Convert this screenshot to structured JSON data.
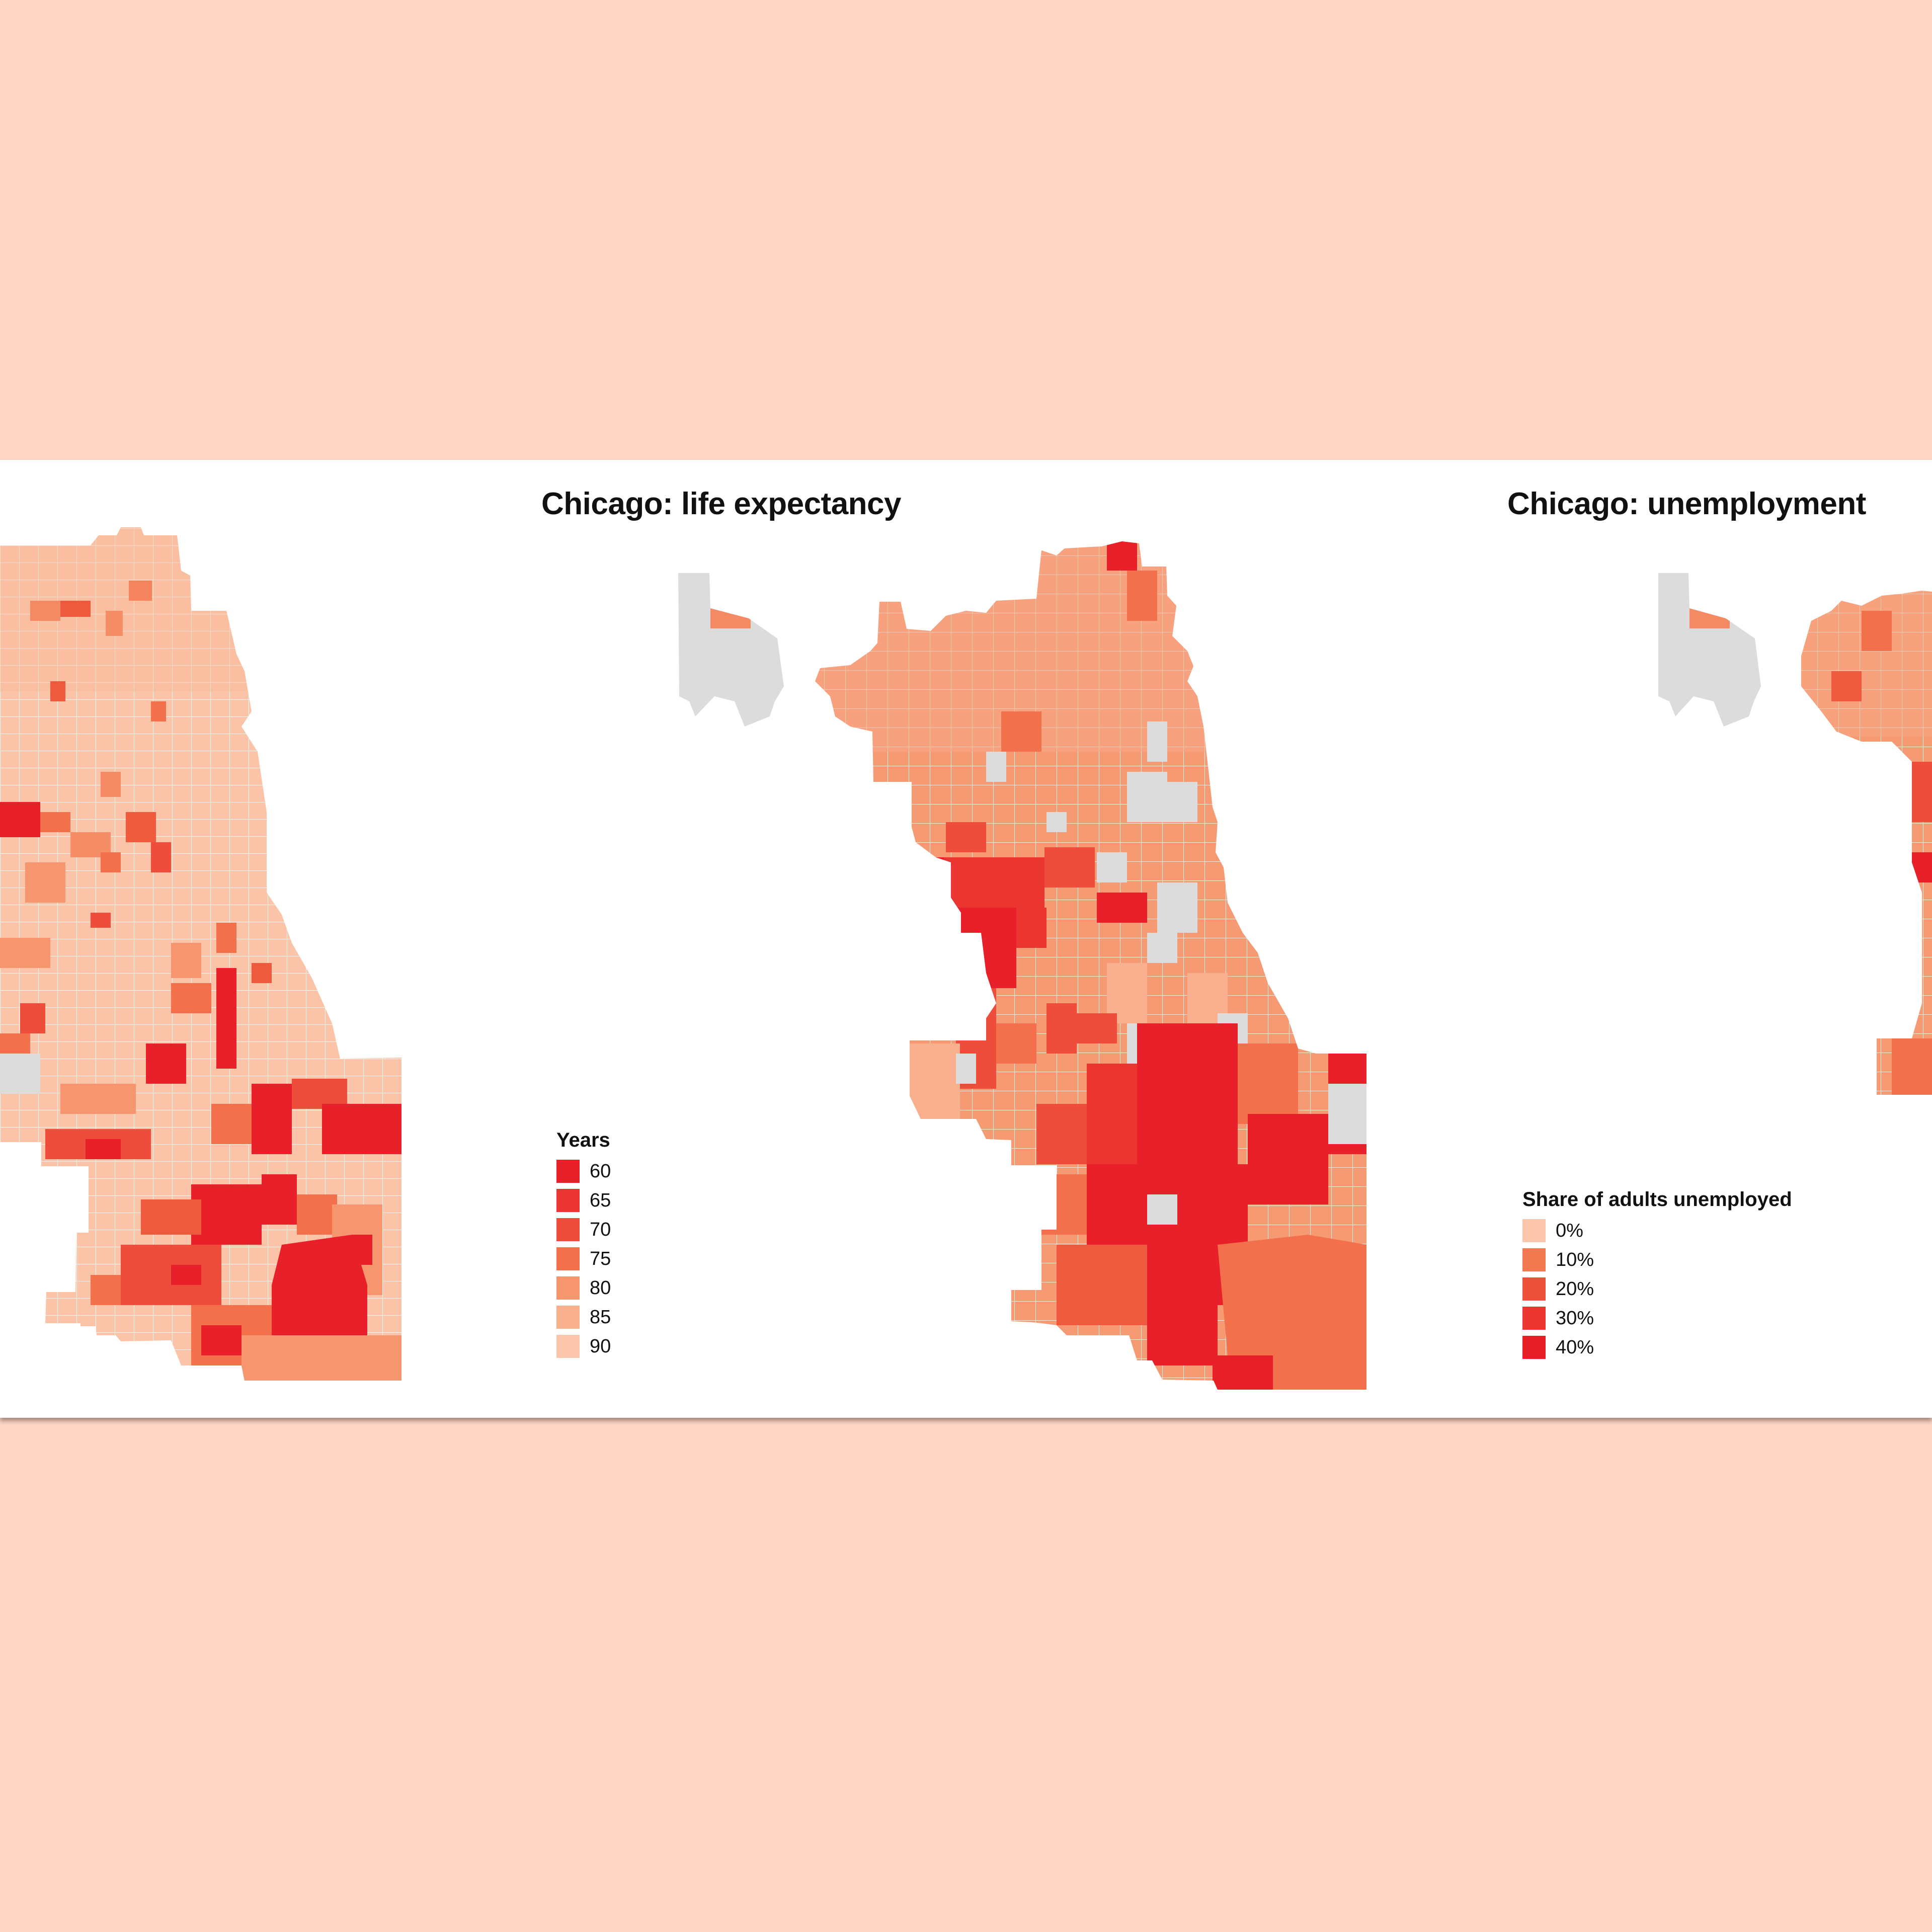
{
  "maps": {
    "life_expectancy": {
      "title": "Chicago: life expectancy",
      "legend_title": "Years",
      "legend": [
        {
          "label": "60",
          "color": "#E8202A"
        },
        {
          "label": "65",
          "color": "#EB3534"
        },
        {
          "label": "70",
          "color": "#EE4D3B"
        },
        {
          "label": "75",
          "color": "#F2704C"
        },
        {
          "label": "80",
          "color": "#F6966F"
        },
        {
          "label": "85",
          "color": "#F9B08E"
        },
        {
          "label": "90",
          "color": "#FBC6AB"
        }
      ]
    },
    "unemployment": {
      "title": "Chicago: unemployment",
      "legend_title": "Share of adults unemployed",
      "legend": [
        {
          "label": "0%",
          "color": "#FBC6AB"
        },
        {
          "label": "10%",
          "color": "#F2784F"
        },
        {
          "label": "20%",
          "color": "#EE5139"
        },
        {
          "label": "30%",
          "color": "#EA3531"
        },
        {
          "label": "40%",
          "color": "#E61F27"
        }
      ]
    }
  },
  "colors": {
    "background": "#FDD5C5",
    "panel": "#FFFFFF",
    "no_data": "#DCDCDC",
    "tract_border": "#FFFFFF"
  }
}
